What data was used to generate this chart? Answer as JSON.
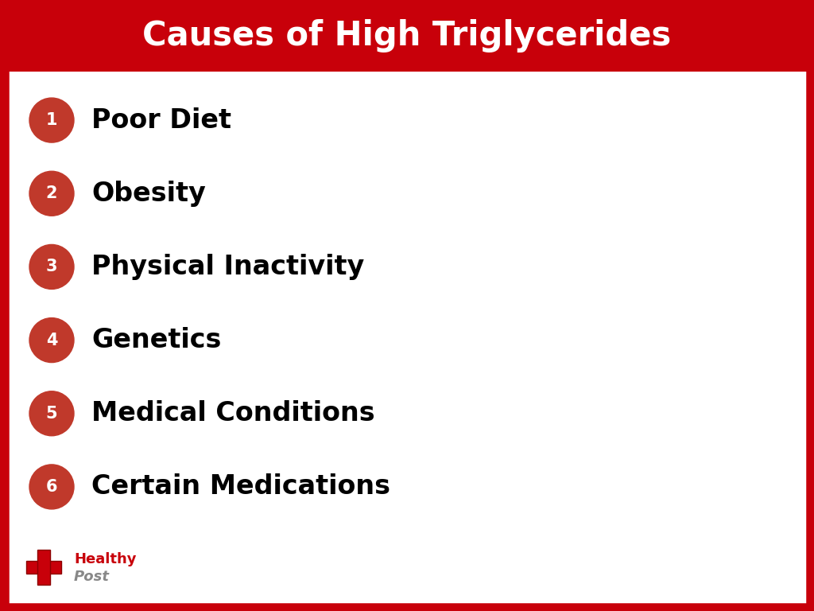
{
  "title": "Causes of High Triglycerides",
  "title_bg_color": "#C8000A",
  "title_text_color": "#FFFFFF",
  "title_fontsize": 30,
  "bg_color": "#FFFFFF",
  "border_color": "#C8000A",
  "border_width": 7,
  "items": [
    {
      "number": "1",
      "text": "Poor Diet"
    },
    {
      "number": "2",
      "text": "Obesity"
    },
    {
      "number": "3",
      "text": "Physical Inactivity"
    },
    {
      "number": "4",
      "text": "Genetics"
    },
    {
      "number": "5",
      "text": "Medical Conditions"
    },
    {
      "number": "6",
      "text": "Certain Medications"
    }
  ],
  "circle_color": "#C0392B",
  "circle_text_color": "#FFFFFF",
  "item_text_color": "#000000",
  "item_fontsize": 24,
  "number_fontsize": 15,
  "left_border_color": "#C8000A"
}
